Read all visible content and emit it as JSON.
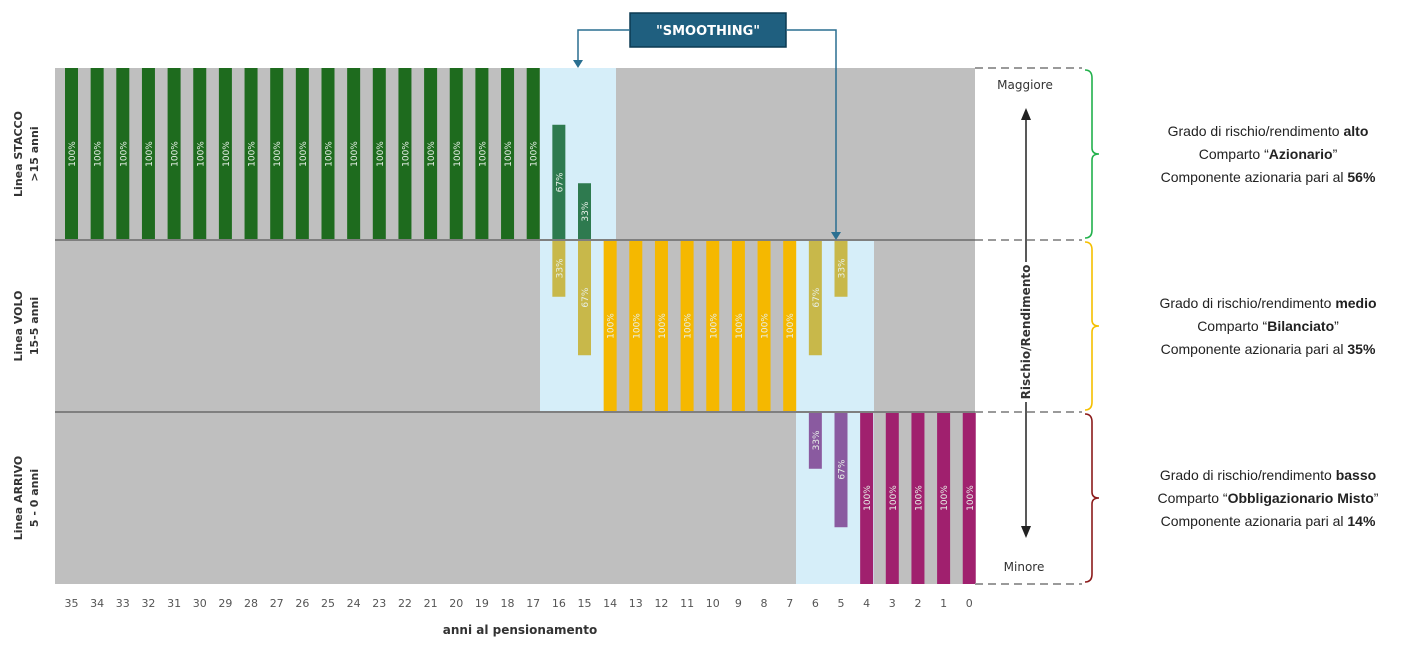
{
  "smoothing_label": "\"SMOOTHING\"",
  "x_axis_title": "anni al pensionamento",
  "years": [
    "35",
    "34",
    "33",
    "32",
    "31",
    "30",
    "29",
    "28",
    "27",
    "26",
    "25",
    "24",
    "23",
    "22",
    "21",
    "20",
    "19",
    "18",
    "17",
    "16",
    "15",
    "14",
    "13",
    "12",
    "11",
    "10",
    "9",
    "8",
    "7",
    "6",
    "5",
    "4",
    "3",
    "2",
    "1",
    "0"
  ],
  "lines": [
    {
      "id": "stacco",
      "name": "Linea STACCO",
      "range": ">15 anni",
      "color": "#1e6b1e",
      "smooth_color": "#2e7a4f"
    },
    {
      "id": "volo",
      "name": "Linea VOLO",
      "range": "15-5 anni",
      "color": "#f5b800",
      "smooth_color": "#c8b84a"
    },
    {
      "id": "arrivo",
      "name": "Linea ARRIVO",
      "range": "5 - 0 anni",
      "color": "#a0206e",
      "smooth_color": "#8a5aa0"
    }
  ],
  "allocation": [
    {
      "year": "35",
      "stacco": 100
    },
    {
      "year": "34",
      "stacco": 100
    },
    {
      "year": "33",
      "stacco": 100
    },
    {
      "year": "32",
      "stacco": 100
    },
    {
      "year": "31",
      "stacco": 100
    },
    {
      "year": "30",
      "stacco": 100
    },
    {
      "year": "29",
      "stacco": 100
    },
    {
      "year": "28",
      "stacco": 100
    },
    {
      "year": "27",
      "stacco": 100
    },
    {
      "year": "26",
      "stacco": 100
    },
    {
      "year": "25",
      "stacco": 100
    },
    {
      "year": "24",
      "stacco": 100
    },
    {
      "year": "23",
      "stacco": 100
    },
    {
      "year": "22",
      "stacco": 100
    },
    {
      "year": "21",
      "stacco": 100
    },
    {
      "year": "20",
      "stacco": 100
    },
    {
      "year": "19",
      "stacco": 100
    },
    {
      "year": "18",
      "stacco": 100
    },
    {
      "year": "17",
      "stacco": 100
    },
    {
      "year": "16",
      "stacco": 67,
      "volo": 33
    },
    {
      "year": "15",
      "stacco": 33,
      "volo": 67
    },
    {
      "year": "14",
      "volo": 100
    },
    {
      "year": "13",
      "volo": 100
    },
    {
      "year": "12",
      "volo": 100
    },
    {
      "year": "11",
      "volo": 100
    },
    {
      "year": "10",
      "volo": 100
    },
    {
      "year": "9",
      "volo": 100
    },
    {
      "year": "8",
      "volo": 100
    },
    {
      "year": "7",
      "volo": 100
    },
    {
      "year": "6",
      "volo": 67,
      "arrivo": 33
    },
    {
      "year": "5",
      "volo": 33,
      "arrivo": 67
    },
    {
      "year": "4",
      "arrivo": 100
    },
    {
      "year": "3",
      "arrivo": 100
    },
    {
      "year": "2",
      "arrivo": 100
    },
    {
      "year": "1",
      "arrivo": 100
    },
    {
      "year": "0",
      "arrivo": 100
    }
  ],
  "risk_axis": {
    "title": "Rischio/Rendimento",
    "top": "Maggiore",
    "bottom": "Minore"
  },
  "descriptions": [
    {
      "line": "stacco",
      "bracket_color": "#22b14c",
      "l1_pre": "Grado di rischio/rendimento ",
      "l1_bold": "alto",
      "l2_pre": "Comparto “",
      "l2_bold": "Azionario",
      "l2_post": "”",
      "l3_pre": "Componente azionaria pari al ",
      "l3_bold": "56%"
    },
    {
      "line": "volo",
      "bracket_color": "#f5c000",
      "l1_pre": "Grado di rischio/rendimento ",
      "l1_bold": "medio",
      "l2_pre": "Comparto “",
      "l2_bold": "Bilanciato",
      "l2_post": "”",
      "l3_pre": "Componente azionaria pari al ",
      "l3_bold": "35%"
    },
    {
      "line": "arrivo",
      "bracket_color": "#8b1a1a",
      "l1_pre": "Grado di rischio/rendimento ",
      "l1_bold": "basso",
      "l2_pre": "Comparto “",
      "l2_bold": "Obbligazionario Misto",
      "l2_post": "”",
      "l3_pre": "Componente azionaria pari al ",
      "l3_bold": "14%"
    }
  ],
  "colors": {
    "gray": "#bfbfbf",
    "smoothing_zone": "#d6eef9",
    "smoothing_box": "#1f5f7f",
    "divider": "#7f7f7f"
  }
}
